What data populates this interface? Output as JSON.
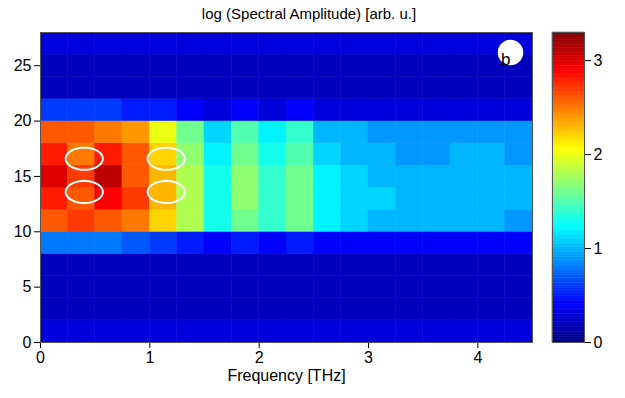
{
  "chart_data": {
    "type": "heatmap",
    "title": "log (Spectral Amplitude) [arb. u.]",
    "x_label": "Frequency [THz]",
    "panel_label": "b",
    "color": "jet",
    "xlim": [
      0,
      4.5
    ],
    "xticks": [
      0,
      1,
      2,
      3,
      4
    ],
    "ylim": [
      0,
      28
    ],
    "yticks": [
      0,
      5,
      10,
      15,
      20,
      25
    ],
    "x_edges": [
      0,
      0.25,
      0.5,
      0.75,
      1,
      1.25,
      1.5,
      1.75,
      2,
      2.25,
      2.5,
      2.75,
      3,
      3.25,
      3.5,
      3.75,
      4,
      4.25,
      4.5
    ],
    "y_edges": [
      0,
      2,
      4,
      6,
      8,
      10,
      12,
      14,
      16,
      18,
      20,
      22,
      24,
      26,
      28
    ],
    "cells": [
      [
        0.3,
        0.3,
        0.3,
        0.3,
        0.3,
        0.3,
        0.3,
        0.3,
        0.3,
        0.3,
        0.3,
        0.3,
        0.3,
        0.3,
        0.3,
        0.3,
        0.3,
        0.3
      ],
      [
        0.2,
        0.2,
        0.2,
        0.2,
        0.2,
        0.2,
        0.2,
        0.2,
        0.2,
        0.2,
        0.2,
        0.2,
        0.2,
        0.2,
        0.2,
        0.2,
        0.2,
        0.2
      ],
      [
        0.2,
        0.2,
        0.2,
        0.2,
        0.2,
        0.2,
        0.2,
        0.2,
        0.2,
        0.2,
        0.2,
        0.2,
        0.2,
        0.2,
        0.2,
        0.2,
        0.2,
        0.2
      ],
      [
        0.2,
        0.2,
        0.2,
        0.2,
        0.2,
        0.2,
        0.2,
        0.2,
        0.2,
        0.2,
        0.2,
        0.2,
        0.2,
        0.2,
        0.2,
        0.2,
        0.2,
        0.2
      ],
      [
        0.8,
        0.8,
        0.8,
        0.7,
        0.6,
        0.5,
        0.4,
        0.5,
        0.4,
        0.5,
        0.4,
        0.4,
        0.4,
        0.4,
        0.4,
        0.4,
        0.4,
        0.4
      ],
      [
        2.6,
        2.7,
        2.6,
        2.5,
        2.2,
        1.8,
        1.3,
        1.6,
        1.4,
        1.6,
        1.2,
        1.1,
        1.0,
        1.0,
        1.0,
        1.0,
        1.0,
        0.9
      ],
      [
        2.8,
        2.6,
        2.9,
        2.7,
        2.3,
        1.8,
        1.3,
        1.7,
        1.4,
        1.6,
        1.2,
        1.1,
        1.1,
        1.0,
        1.0,
        1.0,
        1.0,
        1.0
      ],
      [
        3.0,
        2.7,
        3.1,
        2.6,
        2.3,
        1.8,
        1.3,
        1.7,
        1.4,
        1.6,
        1.2,
        1.1,
        1.0,
        1.0,
        1.0,
        1.0,
        1.0,
        1.0
      ],
      [
        2.8,
        2.5,
        2.8,
        2.6,
        2.2,
        1.7,
        1.2,
        1.6,
        1.3,
        1.5,
        1.1,
        1.0,
        1.0,
        0.9,
        0.9,
        1.0,
        1.0,
        0.9
      ],
      [
        2.6,
        2.6,
        2.5,
        2.4,
        2.0,
        1.6,
        1.1,
        1.5,
        1.2,
        1.4,
        1.0,
        1.0,
        0.9,
        0.9,
        0.9,
        0.9,
        0.9,
        0.9
      ],
      [
        0.6,
        0.6,
        0.6,
        0.5,
        0.5,
        0.4,
        0.3,
        0.4,
        0.3,
        0.4,
        0.3,
        0.3,
        0.3,
        0.3,
        0.3,
        0.3,
        0.3,
        0.3
      ],
      [
        0.2,
        0.2,
        0.2,
        0.2,
        0.2,
        0.2,
        0.2,
        0.2,
        0.2,
        0.2,
        0.2,
        0.2,
        0.2,
        0.2,
        0.2,
        0.2,
        0.2,
        0.2
      ],
      [
        0.2,
        0.2,
        0.2,
        0.2,
        0.2,
        0.2,
        0.2,
        0.2,
        0.2,
        0.2,
        0.2,
        0.2,
        0.2,
        0.2,
        0.2,
        0.2,
        0.2,
        0.2
      ],
      [
        0.3,
        0.3,
        0.3,
        0.3,
        0.3,
        0.3,
        0.3,
        0.3,
        0.3,
        0.3,
        0.3,
        0.3,
        0.3,
        0.3,
        0.3,
        0.3,
        0.3,
        0.3
      ]
    ],
    "marked_regions": [
      {
        "x": 0.4,
        "y": 16.6
      },
      {
        "x": 0.4,
        "y": 13.6
      },
      {
        "x": 1.15,
        "y": 16.6
      },
      {
        "x": 1.15,
        "y": 13.6
      }
    ],
    "colorbar": {
      "range": [
        0,
        3.3
      ],
      "ticks": [
        0,
        1,
        2,
        3
      ]
    }
  }
}
